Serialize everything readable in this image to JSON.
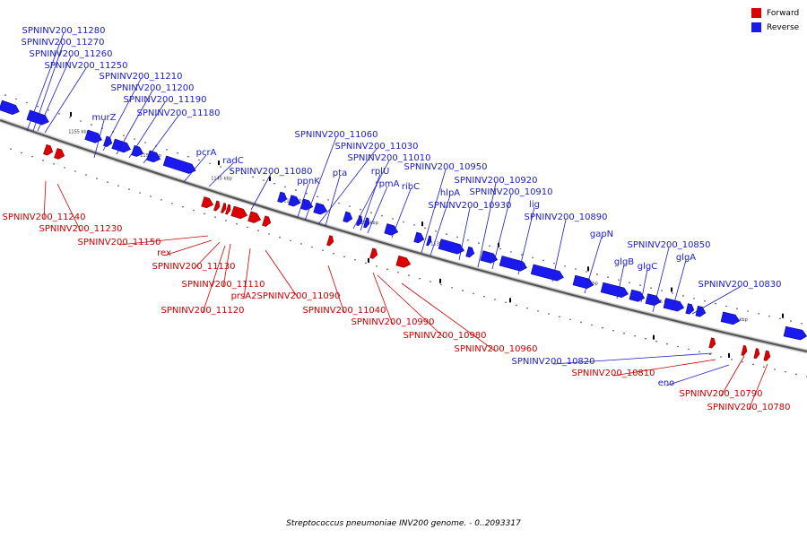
{
  "colors": {
    "forward": "#dd0000",
    "reverse": "#1a1aee",
    "forward_label": "#cc0000",
    "reverse_label": "#1a1acc",
    "axis": "#555555",
    "tick": "#000000"
  },
  "legend": {
    "forward_label": "Forward",
    "reverse_label": "Reverse"
  },
  "caption": "Streptococcus pneumoniae INV200 genome. - 0..2093317",
  "scale_labels": [
    "1155 kbp",
    "1150 kbp",
    "1145 kbp",
    "1140 kbp",
    "1135 kbp",
    "1130 kbp",
    "1125 kbp",
    "1120 kbp",
    "1115 kbp",
    "1110 kbp"
  ],
  "reverse_labels": [
    "SPNINV200_11280",
    "SPNINV200_11270",
    "SPNINV200_11260",
    "SPNINV200_11250",
    "SPNINV200_11210",
    "SPNINV200_11200",
    "SPNINV200_11190",
    "SPNINV200_11180",
    "murZ",
    "pcrA",
    "radC",
    "SPNINV200_11080",
    "SPNINV200_11060",
    "SPNINV200_11030",
    "SPNINV200_11010",
    "ppnK",
    "pta",
    "rplU",
    "rpmA",
    "ribC",
    "SPNINV200_10950",
    "SPNINV200_10920",
    "SPNINV200_10910",
    "hlpA",
    "SPNINV200_10930",
    "lig",
    "SPNINV200_10890",
    "gapN",
    "SPNINV200_10850",
    "glgB",
    "glgC",
    "glgA",
    "SPNINV200_10830",
    "SPNINV200_10820",
    "eno"
  ],
  "forward_labels": [
    "SPNINV200_11240",
    "SPNINV200_11230",
    "SPNINV200_11150",
    "rex",
    "SPNINV200_11130",
    "SPNINV200_11110",
    "prsA2",
    "SPNINV200_11090",
    "SPNINV200_11120",
    "SPNINV200_11040",
    "SPNINV200_10990",
    "SPNINV200_10980",
    "SPNINV200_10960",
    "SPNINV200_10810",
    "SPNINV200_10790",
    "SPNINV200_10780"
  ]
}
